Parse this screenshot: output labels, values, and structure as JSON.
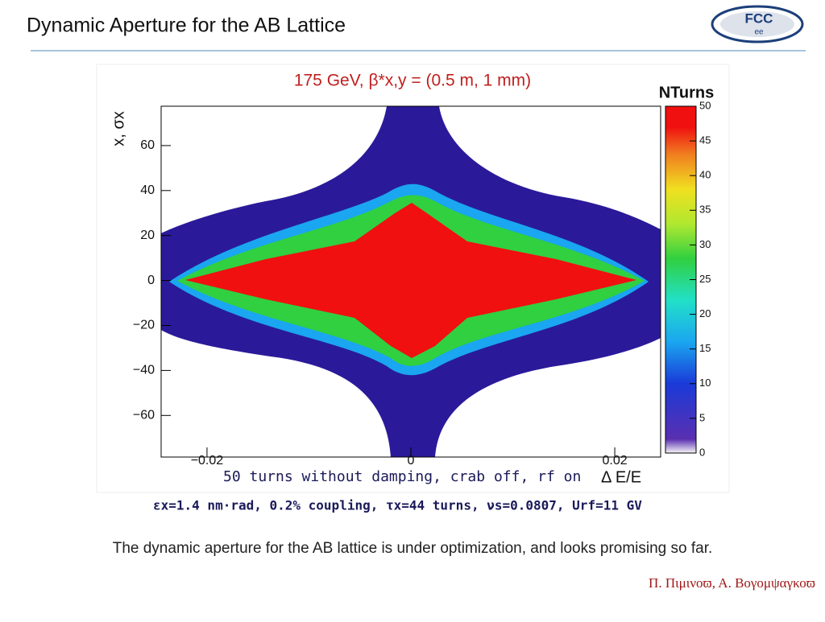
{
  "header": {
    "title": "Dynamic Aperture for the AB Lattice"
  },
  "chart_data": {
    "type": "heatmap",
    "title": "175 GeV, β*x,y = (0.5 m, 1 mm)",
    "x_label": "Δ E/E",
    "y_label": "x, σx",
    "colorbar_label": "NTurns",
    "xlim": [
      -0.0245,
      0.0245
    ],
    "xticks": [
      {
        "value": -0.02,
        "label": "−0.02"
      },
      0,
      0.02
    ],
    "ylim": [
      -78.5,
      77.5
    ],
    "yticks": [
      {
        "value": -60,
        "label": "−60"
      },
      {
        "value": -40,
        "label": "−40"
      },
      {
        "value": -20,
        "label": "−20"
      },
      0,
      20,
      40,
      60
    ],
    "zlim": [
      0,
      50
    ],
    "zticks": [
      0,
      5,
      10,
      15,
      20,
      25,
      30,
      35,
      40,
      45,
      50
    ],
    "annotations": [
      "50 turns without damping, crab off, rf on",
      "εx=1.4 nm·rad, 0.2% coupling, τx=44 turns, νs=0.0807, Urf=11 GV"
    ]
  },
  "body": {
    "text": "The dynamic aperture for the AB lattice is under optimization, and looks promising so far."
  },
  "footer": {
    "authors": "Π. Πιμινοϖ, Α. Βογομψαγκοϖ"
  },
  "logo": {
    "text": "FCC",
    "subtext": "ee"
  }
}
